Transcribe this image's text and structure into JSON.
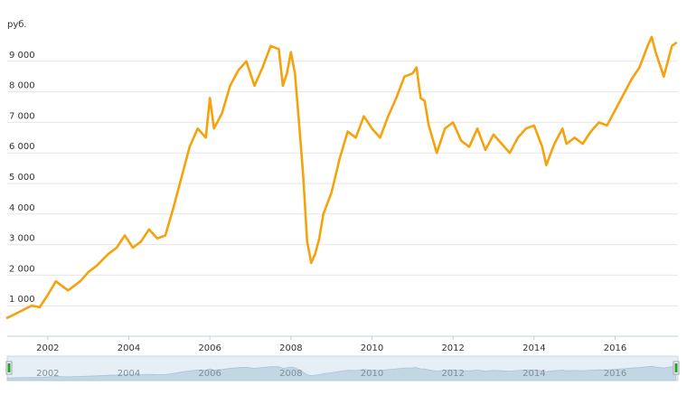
{
  "chart_data": {
    "type": "line",
    "ylabel": "руб.",
    "ylim": [
      0,
      10000
    ],
    "xlim": [
      2001.0,
      2017.55
    ],
    "y_ticks": [
      {
        "value": 1000,
        "label": "1 000"
      },
      {
        "value": 2000,
        "label": "2 000"
      },
      {
        "value": 3000,
        "label": "3 000"
      },
      {
        "value": 4000,
        "label": "4 000"
      },
      {
        "value": 5000,
        "label": "5 000"
      },
      {
        "value": 6000,
        "label": "6 000"
      },
      {
        "value": 7000,
        "label": "7 000"
      },
      {
        "value": 8000,
        "label": "8 000"
      },
      {
        "value": 9000,
        "label": "9 000"
      }
    ],
    "x_ticks": [
      {
        "value": 2002,
        "label": "2002"
      },
      {
        "value": 2004,
        "label": "2004"
      },
      {
        "value": 2006,
        "label": "2006"
      },
      {
        "value": 2008,
        "label": "2008"
      },
      {
        "value": 2010,
        "label": "2010"
      },
      {
        "value": 2012,
        "label": "2012"
      },
      {
        "value": 2014,
        "label": "2014"
      },
      {
        "value": 2016,
        "label": "2016"
      }
    ],
    "grid": "horizontal",
    "series": [
      {
        "color": "#f5a20c",
        "x": [
          2001.0,
          2001.3,
          2001.6,
          2001.8,
          2002.0,
          2002.2,
          2002.5,
          2002.8,
          2003.0,
          2003.2,
          2003.5,
          2003.7,
          2003.9,
          2004.1,
          2004.3,
          2004.5,
          2004.7,
          2004.9,
          2005.1,
          2005.3,
          2005.5,
          2005.7,
          2005.9,
          2006.0,
          2006.1,
          2006.3,
          2006.5,
          2006.7,
          2006.9,
          2007.1,
          2007.3,
          2007.5,
          2007.7,
          2007.8,
          2007.9,
          2008.0,
          2008.1,
          2008.2,
          2008.3,
          2008.4,
          2008.5,
          2008.6,
          2008.7,
          2008.8,
          2009.0,
          2009.2,
          2009.4,
          2009.6,
          2009.8,
          2010.0,
          2010.2,
          2010.4,
          2010.6,
          2010.8,
          2011.0,
          2011.1,
          2011.2,
          2011.3,
          2011.4,
          2011.6,
          2011.8,
          2012.0,
          2012.2,
          2012.4,
          2012.6,
          2012.8,
          2013.0,
          2013.2,
          2013.4,
          2013.6,
          2013.8,
          2014.0,
          2014.2,
          2014.3,
          2014.5,
          2014.7,
          2014.8,
          2015.0,
          2015.2,
          2015.4,
          2015.6,
          2015.8,
          2016.0,
          2016.2,
          2016.4,
          2016.6,
          2016.8,
          2016.9,
          2017.0,
          2017.2,
          2017.4,
          2017.5
        ],
        "y": [
          600,
          800,
          1000,
          950,
          1350,
          1800,
          1500,
          1800,
          2100,
          2300,
          2700,
          2900,
          3300,
          2900,
          3100,
          3500,
          3200,
          3300,
          4200,
          5200,
          6200,
          6800,
          6500,
          7800,
          6800,
          7300,
          8200,
          8700,
          9000,
          8200,
          8800,
          9500,
          9400,
          8200,
          8600,
          9300,
          8600,
          7000,
          5300,
          3100,
          2400,
          2700,
          3200,
          4000,
          4700,
          5800,
          6700,
          6500,
          7200,
          6800,
          6500,
          7200,
          7800,
          8500,
          8600,
          8800,
          7800,
          7700,
          6900,
          6000,
          6800,
          7000,
          6400,
          6200,
          6800,
          6100,
          6600,
          6300,
          6000,
          6500,
          6800,
          6900,
          6200,
          5600,
          6300,
          6800,
          6300,
          6500,
          6300,
          6700,
          7000,
          6900,
          7400,
          7900,
          8400,
          8800,
          9500,
          9800,
          9300,
          8500,
          9500,
          9600
        ]
      }
    ],
    "navigator_labels": [
      "2002",
      "2004",
      "2006",
      "2008",
      "2010",
      "2012",
      "2014",
      "2016"
    ]
  }
}
